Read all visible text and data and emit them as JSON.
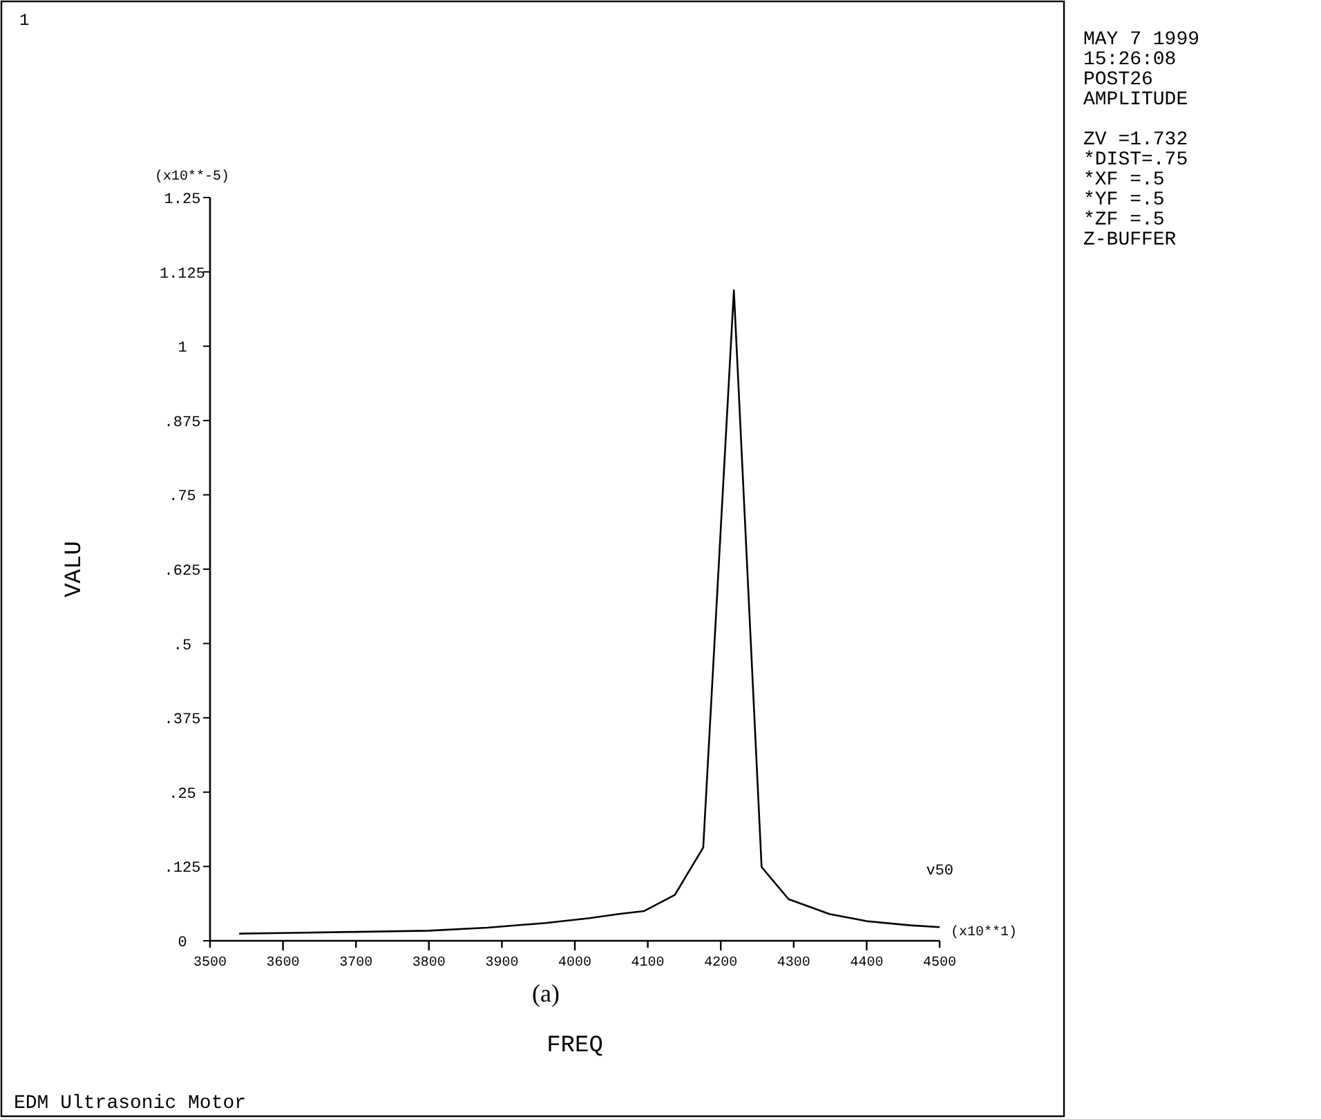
{
  "chart_data": {
    "type": "line",
    "title": "EDM Ultrasonic Motor",
    "xlabel": "FREQ",
    "ylabel": "VALU",
    "x": [
      3540,
      3600,
      3700,
      3800,
      3880,
      3960,
      4020,
      4060,
      4095,
      4137,
      4176,
      4218,
      4256,
      4293,
      4349,
      4400,
      4460,
      4500
    ],
    "series": [
      {
        "name": "v50",
        "color": "#000000",
        "values": [
          0.012,
          0.013,
          0.015,
          0.017,
          0.022,
          0.03,
          0.038,
          0.045,
          0.05,
          0.077,
          0.157,
          1.094,
          0.124,
          0.07,
          0.045,
          0.033,
          0.026,
          0.023
        ]
      }
    ],
    "xlim": [
      3500,
      4500
    ],
    "xticks": [
      3500,
      3600,
      3700,
      3800,
      3900,
      4000,
      4100,
      4200,
      4300,
      4400,
      4500
    ],
    "ylim": [
      0,
      1.25
    ],
    "yticks": [
      0,
      {
        "value": 0.125,
        "label": ".125"
      },
      {
        "value": 0.25,
        "label": ".25"
      },
      {
        "value": 0.375,
        "label": ".375"
      },
      {
        "value": 0.5,
        "label": ".5"
      },
      {
        "value": 0.625,
        "label": ".625"
      },
      {
        "value": 0.75,
        "label": ".75"
      },
      {
        "value": 0.875,
        "label": ".875"
      },
      1,
      1.125,
      1.25
    ],
    "grid": false,
    "marker": "none",
    "line_style": "solid",
    "annotations": [
      "1",
      "(x10**-5)",
      "(x10**1)",
      "(a)",
      "MAY  7 1999",
      "15:26:08",
      "POST26",
      "AMPLITUDE",
      "ZV  =1.732",
      "*DIST=.75",
      "*XF  =.5",
      "*YF  =.5",
      "*ZF  =.5",
      "Z-BUFFER"
    ]
  }
}
